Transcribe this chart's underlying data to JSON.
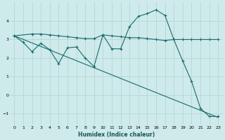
{
  "xlabel": "Humidex (Indice chaleur)",
  "bg_color": "#ceeaea",
  "grid_color": "#afd4d4",
  "line_color": "#1a6b6b",
  "xlim": [
    -0.5,
    23.5
  ],
  "ylim": [
    -1.6,
    5.0
  ],
  "xticks": [
    0,
    1,
    2,
    3,
    4,
    5,
    6,
    7,
    8,
    9,
    10,
    11,
    12,
    13,
    14,
    15,
    16,
    17,
    18,
    19,
    20,
    21,
    22,
    23
  ],
  "yticks": [
    -1,
    0,
    1,
    2,
    3,
    4
  ],
  "line1_x": [
    0,
    23
  ],
  "line1_y": [
    3.2,
    -1.2
  ],
  "line2_x": [
    0,
    2,
    3,
    4,
    5,
    6,
    7,
    8,
    9,
    10,
    11,
    12,
    13,
    14,
    15,
    16,
    17,
    18,
    19,
    20,
    21,
    22,
    23
  ],
  "line2_y": [
    3.2,
    3.3,
    3.3,
    3.25,
    3.2,
    3.15,
    3.1,
    3.05,
    3.05,
    3.25,
    3.2,
    3.15,
    3.1,
    3.1,
    3.05,
    3.0,
    2.95,
    3.0,
    3.0,
    3.0,
    3.0,
    3.0,
    3.0
  ],
  "line3_x": [
    0,
    1,
    2,
    3,
    4,
    5,
    6,
    7,
    8,
    9,
    10,
    11,
    12,
    13,
    14,
    15,
    16,
    17,
    18,
    19,
    20,
    21,
    22,
    23
  ],
  "line3_y": [
    3.2,
    2.85,
    2.35,
    2.8,
    2.45,
    1.7,
    2.55,
    2.6,
    2.0,
    1.55,
    3.25,
    2.5,
    2.5,
    3.7,
    4.25,
    4.4,
    4.6,
    4.3,
    3.0,
    1.85,
    0.75,
    -0.7,
    -1.15,
    -1.15
  ]
}
